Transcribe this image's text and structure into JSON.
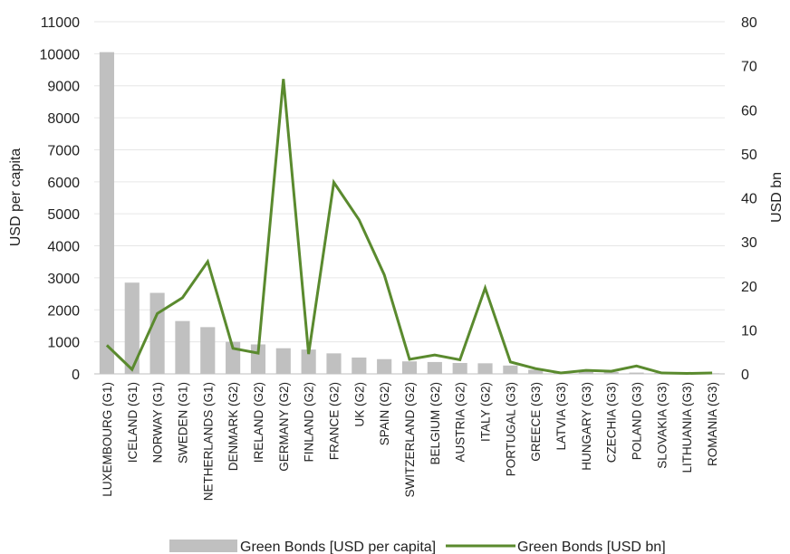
{
  "chart_data": {
    "type": "bar",
    "categories": [
      "LUXEMBOURG (G1)",
      "ICELAND (G1)",
      "NORWAY (G1)",
      "SWEDEN (G1)",
      "NETHERLANDS (G1)",
      "DENMARK (G2)",
      "IRELAND (G2)",
      "GERMANY (G2)",
      "FINLAND (G2)",
      "FRANCE (G2)",
      "UK (G2)",
      "SPAIN (G2)",
      "SWITZERLAND (G2)",
      "BELGIUM (G2)",
      "AUSTRIA (G2)",
      "ITALY (G2)",
      "PORTUGAL (G3)",
      "GREECE (G3)",
      "LATVIA (G3)",
      "HUNGARY (G3)",
      "CZECHIA (G3)",
      "POLAND (G3)",
      "SLOVAKIA (G3)",
      "LITHUANIA (G3)",
      "ROMANIA (G3)"
    ],
    "series": [
      {
        "name": "Green Bonds [USD per capita]",
        "type": "bar",
        "axis": "left",
        "color": "#c0c0c0",
        "values": [
          10050,
          2850,
          2530,
          1650,
          1460,
          1000,
          920,
          800,
          760,
          640,
          510,
          460,
          390,
          370,
          340,
          330,
          260,
          130,
          60,
          70,
          60,
          40,
          30,
          30,
          20
        ]
      },
      {
        "name": "Green Bonds [USD bn]",
        "type": "line",
        "axis": "right",
        "color": "#5a8a2e",
        "values": [
          6.5,
          1.0,
          13.7,
          17.3,
          25.5,
          5.8,
          4.7,
          67.0,
          4.5,
          43.5,
          35.0,
          22.5,
          3.3,
          4.3,
          3.2,
          19.5,
          2.7,
          1.2,
          0.2,
          0.8,
          0.6,
          1.8,
          0.2,
          0.1,
          0.2
        ]
      }
    ],
    "ylabel": "USD per capita",
    "ylabel_right": "USD bn",
    "ylim": [
      0,
      11000
    ],
    "yticks": [
      0,
      1000,
      2000,
      3000,
      4000,
      5000,
      6000,
      7000,
      8000,
      9000,
      10000,
      11000
    ],
    "ylim_right": [
      0,
      80
    ],
    "yticks_right": [
      0,
      10,
      20,
      30,
      40,
      50,
      60,
      70,
      80
    ],
    "grid": true,
    "legend_position": "bottom"
  }
}
